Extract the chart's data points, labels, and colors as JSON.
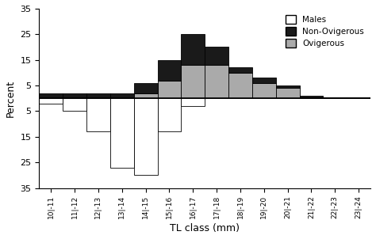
{
  "categories": [
    "10|-11",
    "11|-12",
    "12|-13",
    "13|-14",
    "14|-15",
    "15|-16",
    "16|-17",
    "17|-18",
    "18|-19",
    "19|-20",
    "20|-21",
    "21|-22",
    "22|-23",
    "23|-24"
  ],
  "males": [
    2,
    5,
    13,
    27,
    30,
    13,
    3,
    0,
    0,
    0,
    0,
    0,
    0,
    0
  ],
  "non_ovigerous": [
    2,
    2,
    2,
    2,
    4,
    8,
    12,
    7,
    2,
    2,
    1,
    0.5,
    0.5,
    0.5
  ],
  "ovigerous": [
    0,
    0,
    0,
    0,
    2,
    7,
    13,
    13,
    10,
    6,
    4,
    0.5,
    0,
    0
  ],
  "males_color": "#ffffff",
  "non_ovigerous_color": "#1a1a1a",
  "ovigerous_color": "#aaaaaa",
  "edge_color": "#000000",
  "ylabel": "Percent",
  "xlabel": "TL class (mm)",
  "ylim": [
    -35,
    35
  ],
  "legend_labels": [
    "Males",
    "Non-Ovigerous",
    "Ovigerous"
  ]
}
